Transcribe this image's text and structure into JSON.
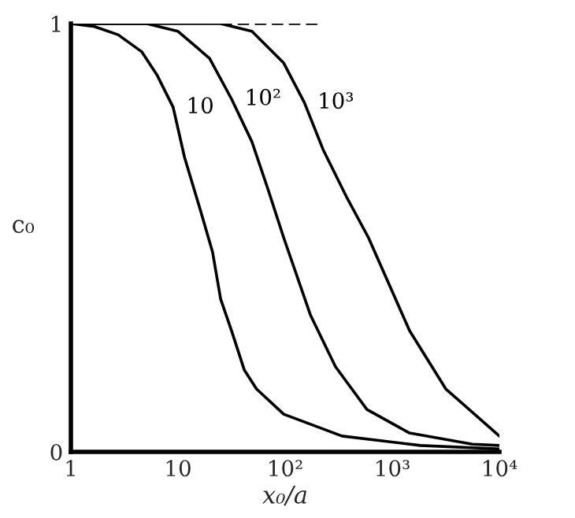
{
  "chart_data": {
    "type": "line",
    "xlabel": "x₀/a",
    "ylabel": "c₀",
    "log": "x",
    "grid": false,
    "legend": false,
    "xlim": [
      1,
      10000
    ],
    "ylim": [
      0,
      1
    ],
    "xticks": [
      1,
      10,
      {
        "value": 100,
        "label": "10²"
      },
      {
        "value": 1000,
        "label": "10³"
      },
      {
        "value": 10000,
        "label": "10⁴"
      }
    ],
    "yticks": [
      0,
      1
    ],
    "series": [
      {
        "name": "10",
        "color": "#000000",
        "line_style": "solid",
        "x": [
          1,
          1.66,
          2.76,
          4.6,
          6.4,
          9.0,
          11.5,
          16.1,
          21,
          25,
          31.6,
          41.6,
          54,
          97,
          339,
          1830,
          10000
        ],
        "values": [
          1.0,
          0.993,
          0.974,
          0.934,
          0.879,
          0.805,
          0.688,
          0.566,
          0.467,
          0.357,
          0.283,
          0.191,
          0.147,
          0.088,
          0.037,
          0.015,
          0.007
        ]
      },
      {
        "name": "10²",
        "color": "#000000",
        "line_style": "solid",
        "x": [
          1,
          5.1,
          10,
          19.7,
          31.6,
          49,
          69,
          97,
          172,
          295,
          580,
          1450,
          5600,
          10000
        ],
        "values": [
          1.0,
          1.0,
          0.982,
          0.919,
          0.824,
          0.724,
          0.614,
          0.5,
          0.32,
          0.199,
          0.099,
          0.044,
          0.018,
          0.015
        ]
      },
      {
        "name": "10³",
        "color": "#000000",
        "line_style": "solid",
        "x": [
          1,
          25,
          49,
          97,
          151,
          226,
          373,
          600,
          1450,
          3160,
          10000
        ],
        "values": [
          1.0,
          1.0,
          0.982,
          0.908,
          0.816,
          0.706,
          0.596,
          0.5,
          0.283,
          0.147,
          0.037
        ]
      },
      {
        "color": "#000000",
        "line_style": "dashed",
        "x": [
          25,
          210
        ],
        "values": [
          1.0,
          1.0
        ]
      }
    ]
  }
}
